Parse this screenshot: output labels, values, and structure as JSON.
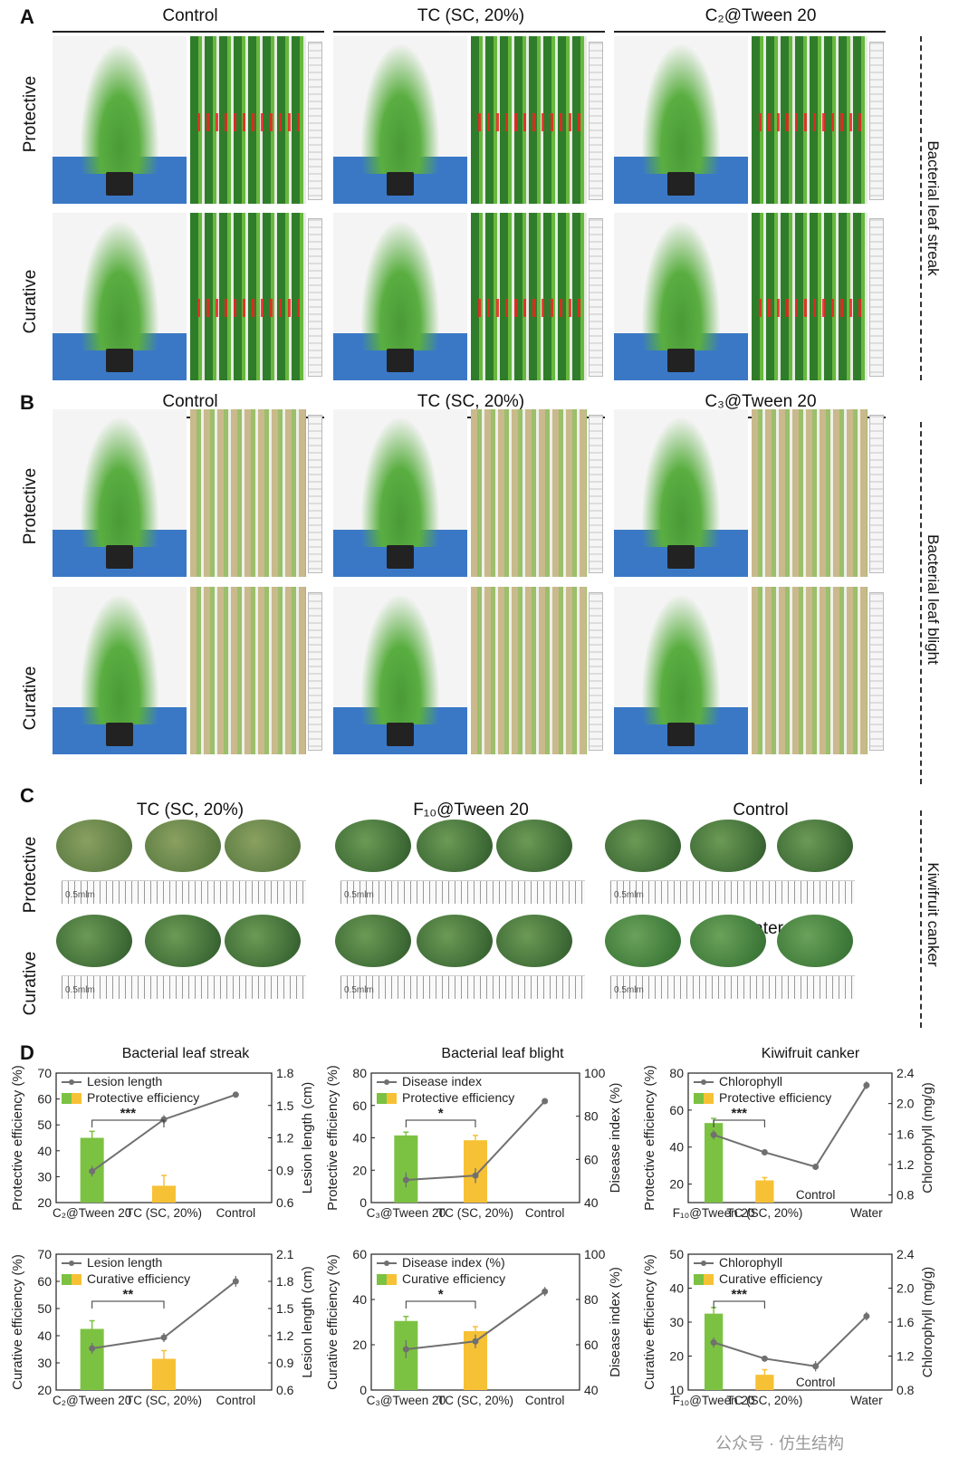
{
  "panels": {
    "a": "A",
    "b": "B",
    "c": "C",
    "d": "D"
  },
  "panel_a": {
    "columns": [
      "Control",
      "TC (SC, 20%)",
      "C₂@Tween 20"
    ],
    "rows": [
      "Protective",
      "Curative"
    ],
    "side": "Bacterial leaf streak"
  },
  "panel_b": {
    "columns": [
      "Control",
      "TC (SC, 20%)",
      "C₃@Tween 20"
    ],
    "rows": [
      "Protective",
      "Curative"
    ],
    "side": "Bacterial leaf blight"
  },
  "panel_c": {
    "columns": [
      "TC (SC, 20%)",
      "F₁₀@Tween 20",
      "Control"
    ],
    "water": "Water",
    "rows": [
      "Protective",
      "Curative"
    ],
    "side": "Kiwifruit canker",
    "scale": "0.5mlm"
  },
  "watermark": "公众号 · 仿生结构",
  "colors": {
    "green": "#7cc242",
    "yellow": "#f7c136",
    "line": "#707070"
  },
  "chart_data": [
    {
      "type": "bar+line",
      "title": "Bacterial leaf streak",
      "categories": [
        "C₂@Tween 20",
        "TC (SC, 20%)",
        "Control"
      ],
      "ylabel": "Protective efficiency (%)",
      "y2label": "Lesion length (cm)",
      "ylim": [
        20,
        70
      ],
      "yticks": [
        "20",
        "30",
        "40",
        "50",
        "60",
        "70"
      ],
      "y2lim": [
        0.6,
        1.8
      ],
      "y2ticks": [
        "0.6",
        "0.9",
        "1.2",
        "1.5",
        "1.8"
      ],
      "bars": [
        45,
        26.5
      ],
      "bar_err": [
        2.5,
        4
      ],
      "line": [
        0.89,
        1.37,
        1.6
      ],
      "line_err": [
        0.05,
        0.04,
        0.01
      ],
      "legend": [
        "Lesion length",
        "Protective efficiency"
      ],
      "sig": "***"
    },
    {
      "type": "bar+line",
      "title": "Bacterial leaf blight",
      "categories": [
        "C₃@Tween 20",
        "TC (SC, 20%)",
        "Control"
      ],
      "ylabel": "Protective efficiency (%)",
      "y2label": "Disease index (%)",
      "ylim": [
        0,
        80
      ],
      "yticks": [
        "0",
        "20",
        "40",
        "60",
        "80"
      ],
      "y2lim": [
        40,
        100
      ],
      "y2ticks": [
        "40",
        "60",
        "80",
        "100"
      ],
      "bars": [
        41.5,
        38.5
      ],
      "bar_err": [
        2,
        3
      ],
      "line": [
        50.5,
        52.5,
        87
      ],
      "line_err": [
        3.5,
        3.5,
        1
      ],
      "legend": [
        "Disease index",
        "Protective efficiency"
      ],
      "sig": "*"
    },
    {
      "type": "bar+line",
      "title": "Kiwifruit canker",
      "categories": [
        "F₁₀@Tween 20",
        "TC (SC, 20%)",
        "Control",
        "Water"
      ],
      "ylabel": "Protective efficiency (%)",
      "y2label": "Chlorophyll (mg/g)",
      "ylim": [
        10,
        80
      ],
      "yticks": [
        "20",
        "40",
        "60",
        "80"
      ],
      "y2lim": [
        0.7,
        2.4
      ],
      "y2ticks": [
        "0.8",
        "1.2",
        "1.6",
        "2.0",
        "2.4"
      ],
      "bars": [
        53,
        22
      ],
      "bar_err": [
        2.5,
        1.5
      ],
      "line": [
        1.59,
        1.36,
        1.17,
        2.24
      ],
      "line_err": [
        0.06,
        0.03,
        0.04,
        0.05
      ],
      "legend": [
        "Chlorophyll",
        "Protective efficiency"
      ],
      "sig": "***"
    },
    {
      "type": "bar+line",
      "categories": [
        "C₂@Tween 20",
        "TC (SC, 20%)",
        "Control"
      ],
      "ylabel": "Curative efficiency (%)",
      "y2label": "Lesion length (cm)",
      "ylim": [
        20,
        70
      ],
      "yticks": [
        "20",
        "30",
        "40",
        "50",
        "60",
        "70"
      ],
      "y2lim": [
        0.6,
        2.1
      ],
      "y2ticks": [
        "0.6",
        "0.9",
        "1.2",
        "1.5",
        "1.8",
        "2.1"
      ],
      "bars": [
        42.5,
        31.5
      ],
      "bar_err": [
        3,
        3
      ],
      "line": [
        1.06,
        1.18,
        1.8
      ],
      "line_err": [
        0.06,
        0.05,
        0.06
      ],
      "legend": [
        "Lesion length",
        "Curative efficiency"
      ],
      "sig": "**"
    },
    {
      "type": "bar+line",
      "categories": [
        "C₃@Tween 20",
        "TC (SC, 20%)",
        "Control"
      ],
      "ylabel": "Curative efficiency (%)",
      "y2label": "Disease index (%)",
      "ylim": [
        0,
        60
      ],
      "yticks": [
        "0",
        "20",
        "40",
        "60"
      ],
      "y2lim": [
        40,
        100
      ],
      "y2ticks": [
        "40",
        "60",
        "80",
        "100"
      ],
      "bars": [
        30.5,
        26
      ],
      "bar_err": [
        2,
        2
      ],
      "line": [
        58,
        61.5,
        83.5
      ],
      "line_err": [
        4,
        3,
        2
      ],
      "legend": [
        "Disease index (%)",
        "Curative efficiency"
      ],
      "sig": "*"
    },
    {
      "type": "bar+line",
      "categories": [
        "F₁₀@Tween 20",
        "TC (SC, 20%)",
        "Control",
        "Water"
      ],
      "ylabel": "Curative efficiency (%)",
      "y2label": "Chlorophyll (mg/g)",
      "ylim": [
        10,
        50
      ],
      "yticks": [
        "10",
        "20",
        "30",
        "40",
        "50"
      ],
      "y2lim": [
        0.8,
        2.4
      ],
      "y2ticks": [
        "0.8",
        "1.2",
        "1.6",
        "2.0",
        "2.4"
      ],
      "bars": [
        32.5,
        14.5
      ],
      "bar_err": [
        1.8,
        1.5
      ],
      "line": [
        1.36,
        1.17,
        1.08,
        1.67
      ],
      "line_err": [
        0.06,
        0.03,
        0.06,
        0.05
      ],
      "legend": [
        "Chlorophyll",
        "Curative efficiency"
      ],
      "sig": "***"
    }
  ]
}
